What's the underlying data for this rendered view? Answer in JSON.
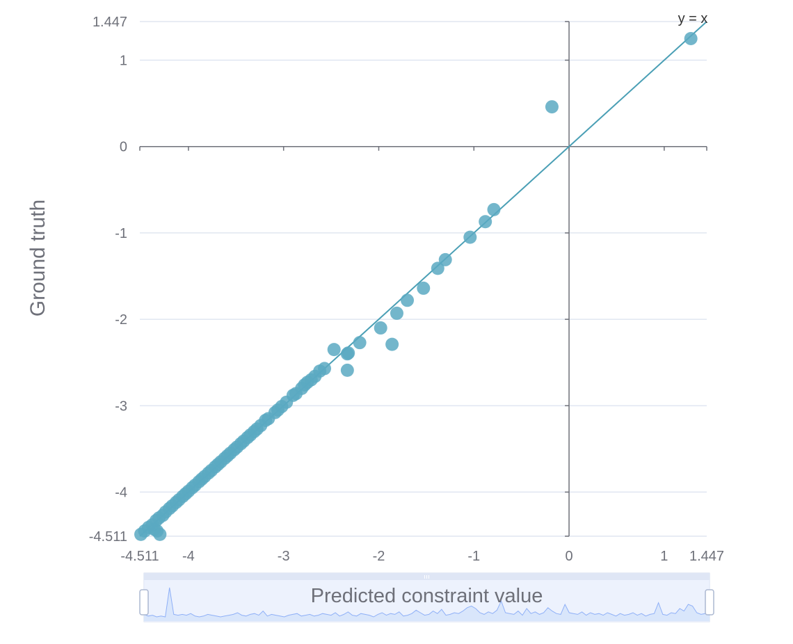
{
  "chart_data": {
    "type": "scatter",
    "xlabel": "Predicted constraint value",
    "ylabel": "Ground truth",
    "xlim": [
      -4.511,
      1.447
    ],
    "ylim": [
      -4.511,
      1.447
    ],
    "x_ticks": [
      -4.511,
      -4,
      -3,
      -2,
      -1,
      0,
      1,
      1.447
    ],
    "y_ticks": [
      1.447,
      1,
      0,
      -1,
      -2,
      -3,
      -4,
      -4.511
    ],
    "grid": true,
    "reference_line": {
      "label": "y = x",
      "from": [
        -4.511,
        -4.511
      ],
      "to": [
        1.447,
        1.447
      ]
    },
    "points_color": "#5aa9c2",
    "line_color": "#4a9fb5",
    "series": [
      {
        "points": [
          [
            1.28,
            1.25
          ],
          [
            -0.18,
            0.46
          ],
          [
            -0.79,
            -0.73
          ],
          [
            -0.88,
            -0.87
          ],
          [
            -1.04,
            -1.05
          ],
          [
            -1.3,
            -1.31
          ],
          [
            -1.38,
            -1.41
          ],
          [
            -1.53,
            -1.64
          ],
          [
            -1.7,
            -1.78
          ],
          [
            -1.81,
            -1.93
          ],
          [
            -1.98,
            -2.1
          ],
          [
            -1.86,
            -2.29
          ],
          [
            -2.2,
            -2.27
          ],
          [
            -2.33,
            -2.4
          ],
          [
            -2.32,
            -2.39
          ],
          [
            -2.47,
            -2.35
          ],
          [
            -2.33,
            -2.59
          ],
          [
            -2.57,
            -2.57
          ],
          [
            -2.62,
            -2.6
          ],
          [
            -2.67,
            -2.66
          ],
          [
            -2.71,
            -2.7
          ],
          [
            -2.75,
            -2.73
          ],
          [
            -2.78,
            -2.76
          ],
          [
            -2.81,
            -2.8
          ],
          [
            -2.87,
            -2.86
          ],
          [
            -2.9,
            -2.88
          ],
          [
            -2.97,
            -2.96
          ],
          [
            -3.02,
            -3.01
          ],
          [
            -3.06,
            -3.05
          ],
          [
            -3.09,
            -3.08
          ],
          [
            -3.16,
            -3.15
          ],
          [
            -3.19,
            -3.17
          ],
          [
            -3.24,
            -3.23
          ],
          [
            -3.28,
            -3.27
          ],
          [
            -3.31,
            -3.3
          ],
          [
            -3.35,
            -3.34
          ],
          [
            -3.38,
            -3.37
          ],
          [
            -3.42,
            -3.41
          ],
          [
            -3.45,
            -3.44
          ],
          [
            -3.49,
            -3.48
          ],
          [
            -3.52,
            -3.51
          ],
          [
            -3.56,
            -3.55
          ],
          [
            -3.59,
            -3.58
          ],
          [
            -3.62,
            -3.61
          ],
          [
            -3.66,
            -3.65
          ],
          [
            -3.69,
            -3.68
          ],
          [
            -3.72,
            -3.71
          ],
          [
            -3.76,
            -3.75
          ],
          [
            -3.79,
            -3.78
          ],
          [
            -3.83,
            -3.82
          ],
          [
            -3.86,
            -3.85
          ],
          [
            -3.89,
            -3.88
          ],
          [
            -3.93,
            -3.92
          ],
          [
            -3.96,
            -3.95
          ],
          [
            -4.0,
            -3.99
          ],
          [
            -4.03,
            -4.02
          ],
          [
            -4.06,
            -4.05
          ],
          [
            -4.1,
            -4.09
          ],
          [
            -4.13,
            -4.12
          ],
          [
            -4.17,
            -4.16
          ],
          [
            -4.2,
            -4.19
          ],
          [
            -4.24,
            -4.23
          ],
          [
            -4.27,
            -4.27
          ],
          [
            -4.31,
            -4.3
          ],
          [
            -4.34,
            -4.33
          ],
          [
            -4.38,
            -4.38
          ],
          [
            -4.42,
            -4.41
          ],
          [
            -4.46,
            -4.45
          ],
          [
            -4.5,
            -4.49
          ],
          [
            -4.3,
            -4.49
          ],
          [
            -4.36,
            -4.43
          ],
          [
            -4.33,
            -4.45
          ]
        ]
      }
    ]
  },
  "slider": {
    "label": "Predicted constraint value",
    "range": [
      0,
      100
    ],
    "handle_color": "#ffffff",
    "fill_color": "#d6e4fb",
    "line_color": "#8fb0f7",
    "sparkline": [
      8,
      6,
      7,
      5,
      6,
      5,
      40,
      8,
      7,
      8,
      7,
      9,
      6,
      5,
      6,
      8,
      7,
      6,
      5,
      6,
      7,
      8,
      10,
      7,
      6,
      8,
      9,
      7,
      12,
      6,
      8,
      7,
      6,
      5,
      7,
      8,
      9,
      6,
      7,
      8,
      6,
      7,
      9,
      8,
      7,
      10,
      6,
      8,
      11,
      7,
      6,
      9,
      8,
      7,
      5,
      8,
      10,
      7,
      9,
      8,
      11,
      6,
      7,
      9,
      13,
      10,
      7,
      8,
      12,
      9,
      14,
      7,
      8,
      10,
      9,
      12,
      16,
      18,
      15,
      10,
      8,
      11,
      9,
      13,
      24,
      10,
      9,
      8,
      12,
      7,
      15,
      9,
      11,
      8,
      10,
      16,
      12,
      9,
      8,
      20,
      10,
      9,
      8,
      11,
      7,
      10,
      8,
      9,
      7,
      10,
      8,
      6,
      9,
      7,
      8,
      10,
      7,
      9,
      6,
      8,
      9,
      22,
      8,
      7,
      10,
      9,
      15,
      12,
      20,
      18,
      10,
      8,
      9,
      7
    ]
  }
}
